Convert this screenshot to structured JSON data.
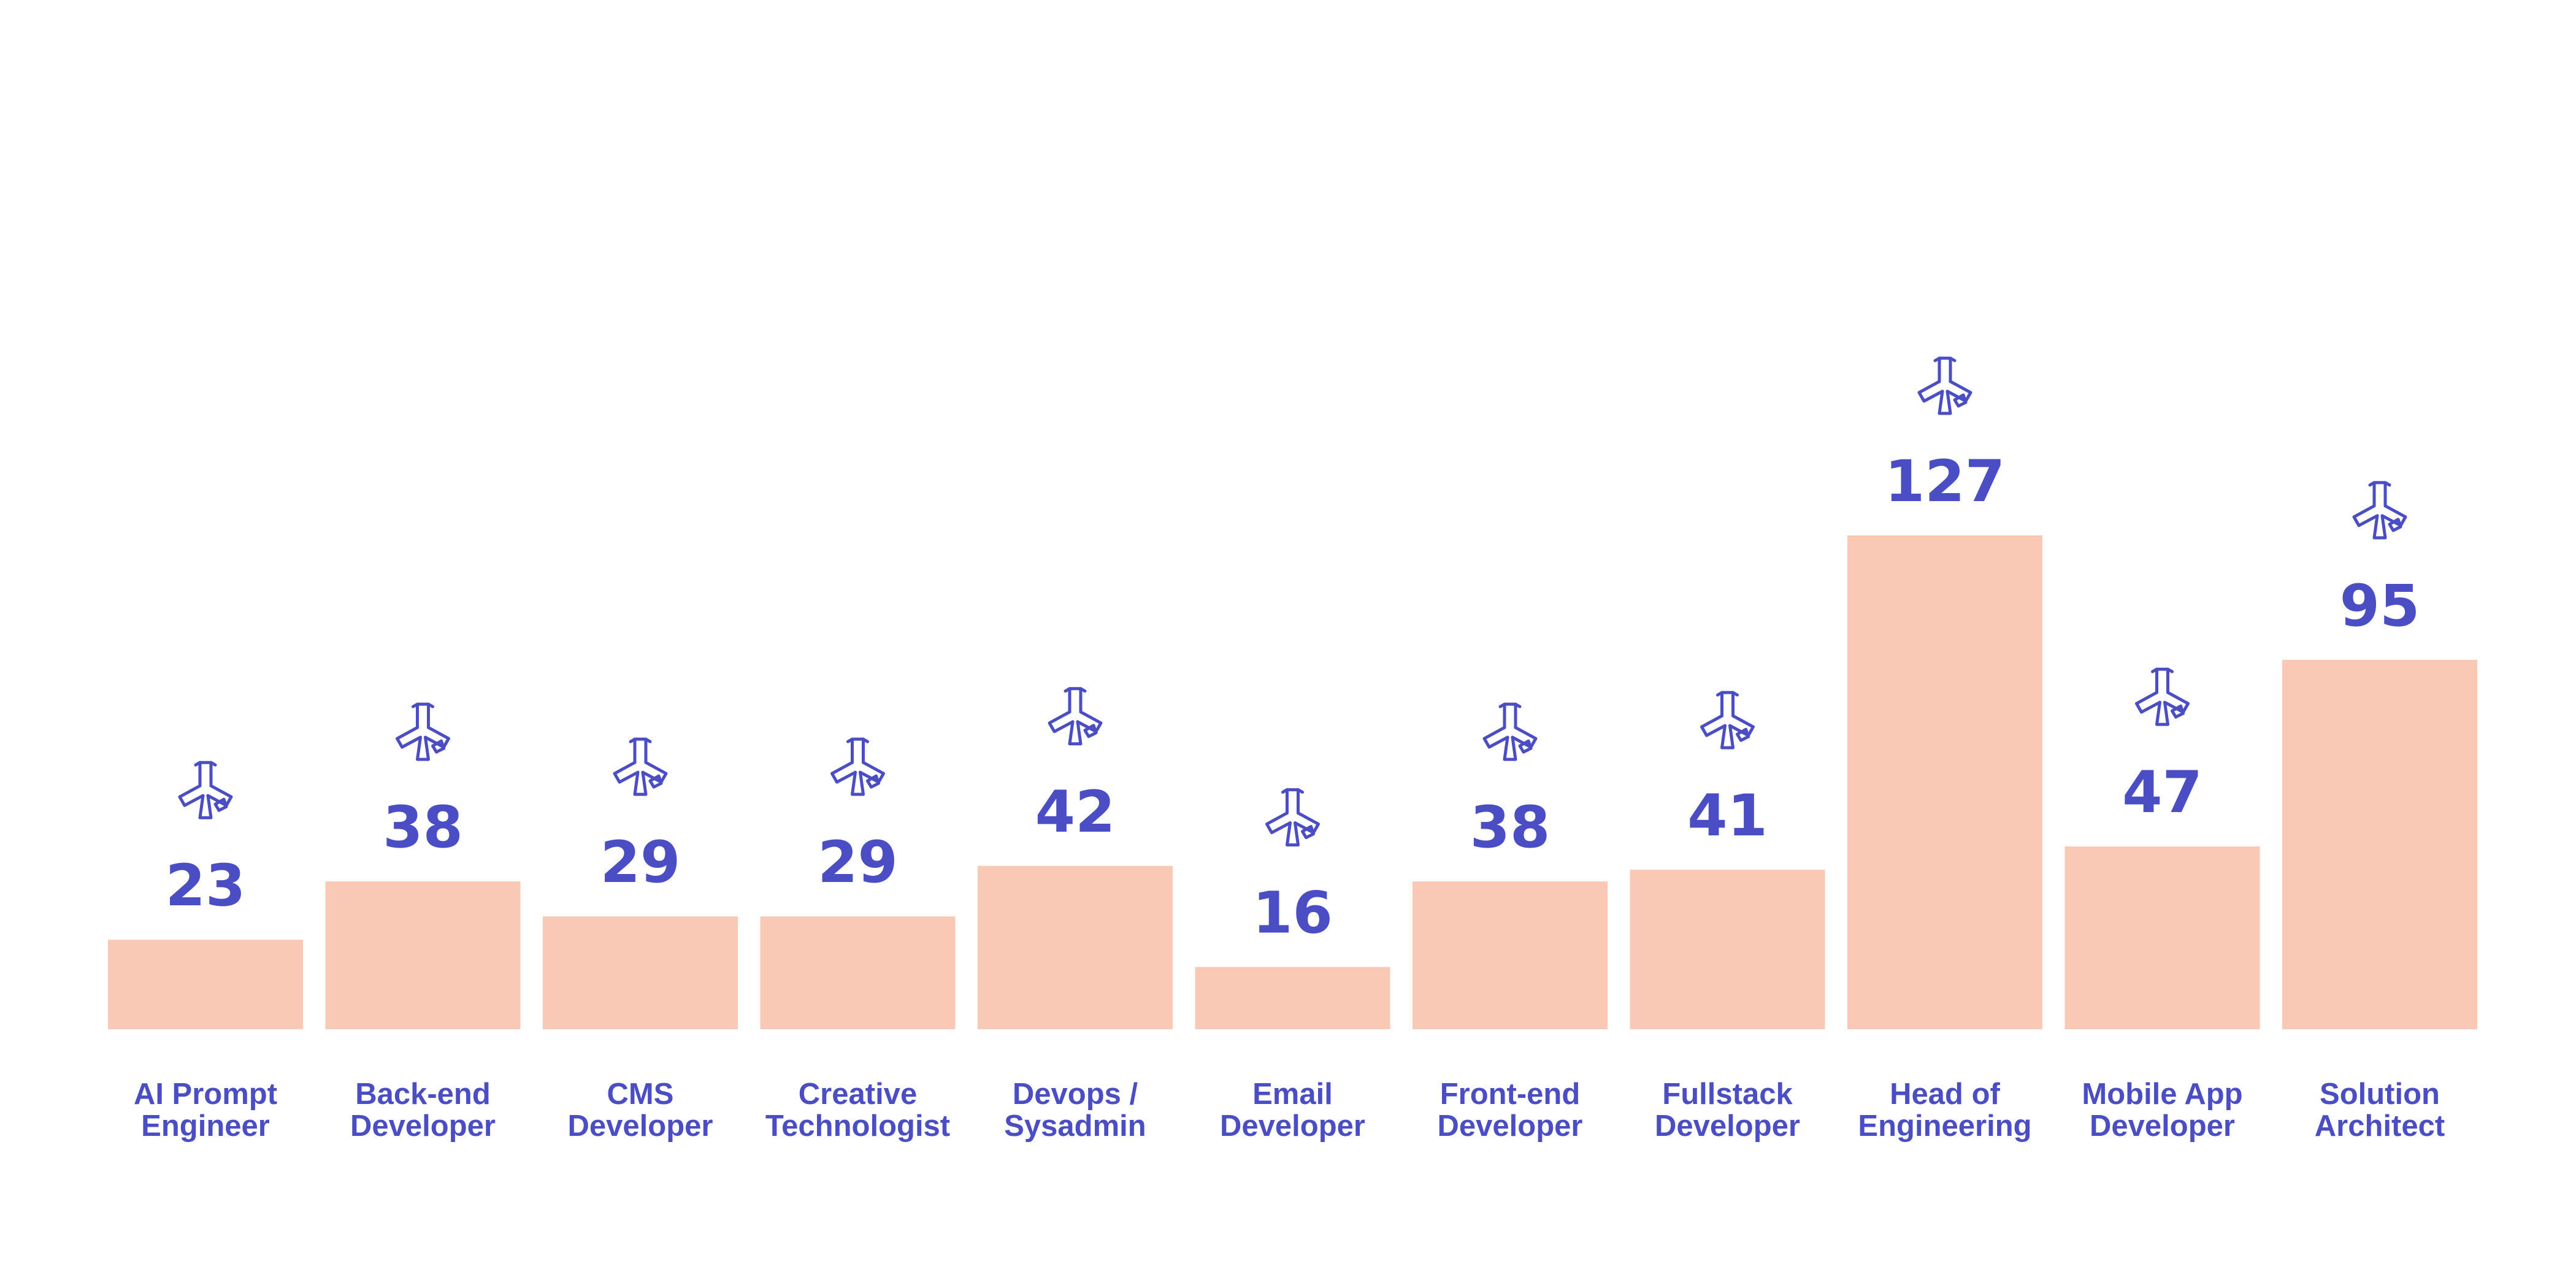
{
  "chart_data": {
    "type": "bar",
    "title": "",
    "xlabel": "",
    "ylabel": "",
    "ylim": [
      0,
      127
    ],
    "grid": false,
    "categories": [
      [
        "AI Prompt",
        "Engineer"
      ],
      [
        "Back-end",
        "Developer"
      ],
      [
        "CMS",
        "Developer"
      ],
      [
        "Creative",
        "Technologist"
      ],
      [
        "Devops /",
        "Sysadmin"
      ],
      [
        "Email",
        "Developer"
      ],
      [
        "Front-end",
        "Developer"
      ],
      [
        "Fullstack",
        "Developer"
      ],
      [
        "Head of",
        "Engineering"
      ],
      [
        "Mobile App",
        "Developer"
      ],
      [
        "Solution",
        "Architect"
      ]
    ],
    "values": [
      23,
      38,
      29,
      29,
      42,
      16,
      38,
      41,
      127,
      47,
      95
    ],
    "marker_icon": "asterisk-snowflake-icon"
  },
  "colors": {
    "bar": "#fac9b5",
    "accent": "#4a4dc4",
    "background": "#ffffff"
  }
}
